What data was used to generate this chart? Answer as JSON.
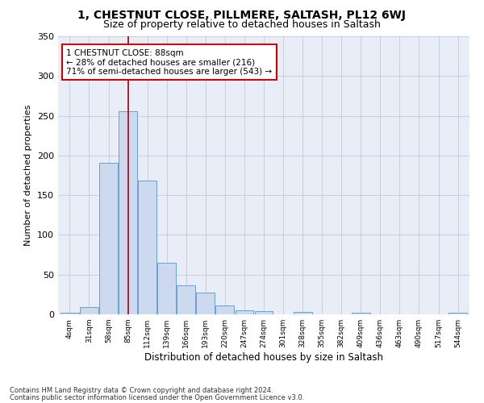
{
  "title": "1, CHESTNUT CLOSE, PILLMERE, SALTASH, PL12 6WJ",
  "subtitle": "Size of property relative to detached houses in Saltash",
  "xlabel": "Distribution of detached houses by size in Saltash",
  "ylabel": "Number of detached properties",
  "categories": [
    "4sqm",
    "31sqm",
    "58sqm",
    "85sqm",
    "112sqm",
    "139sqm",
    "166sqm",
    "193sqm",
    "220sqm",
    "247sqm",
    "274sqm",
    "301sqm",
    "328sqm",
    "355sqm",
    "382sqm",
    "409sqm",
    "436sqm",
    "463sqm",
    "490sqm",
    "517sqm",
    "544sqm"
  ],
  "values": [
    2,
    9,
    191,
    256,
    168,
    65,
    37,
    27,
    11,
    5,
    4,
    0,
    3,
    0,
    0,
    2,
    0,
    0,
    0,
    0,
    2
  ],
  "bar_color": "#ccd9ee",
  "bar_edge_color": "#6a9fd0",
  "property_line_x": 3,
  "property_line_color": "#aa0000",
  "annotation_text": "1 CHESTNUT CLOSE: 88sqm\n← 28% of detached houses are smaller (216)\n71% of semi-detached houses are larger (543) →",
  "annotation_box_color": "#ffffff",
  "annotation_box_edge_color": "#cc0000",
  "ylim": [
    0,
    350
  ],
  "yticks": [
    0,
    50,
    100,
    150,
    200,
    250,
    300,
    350
  ],
  "bg_color": "#e8edf8",
  "footer1": "Contains HM Land Registry data © Crown copyright and database right 2024.",
  "footer2": "Contains public sector information licensed under the Open Government Licence v3.0.",
  "title_fontsize": 10,
  "subtitle_fontsize": 9
}
